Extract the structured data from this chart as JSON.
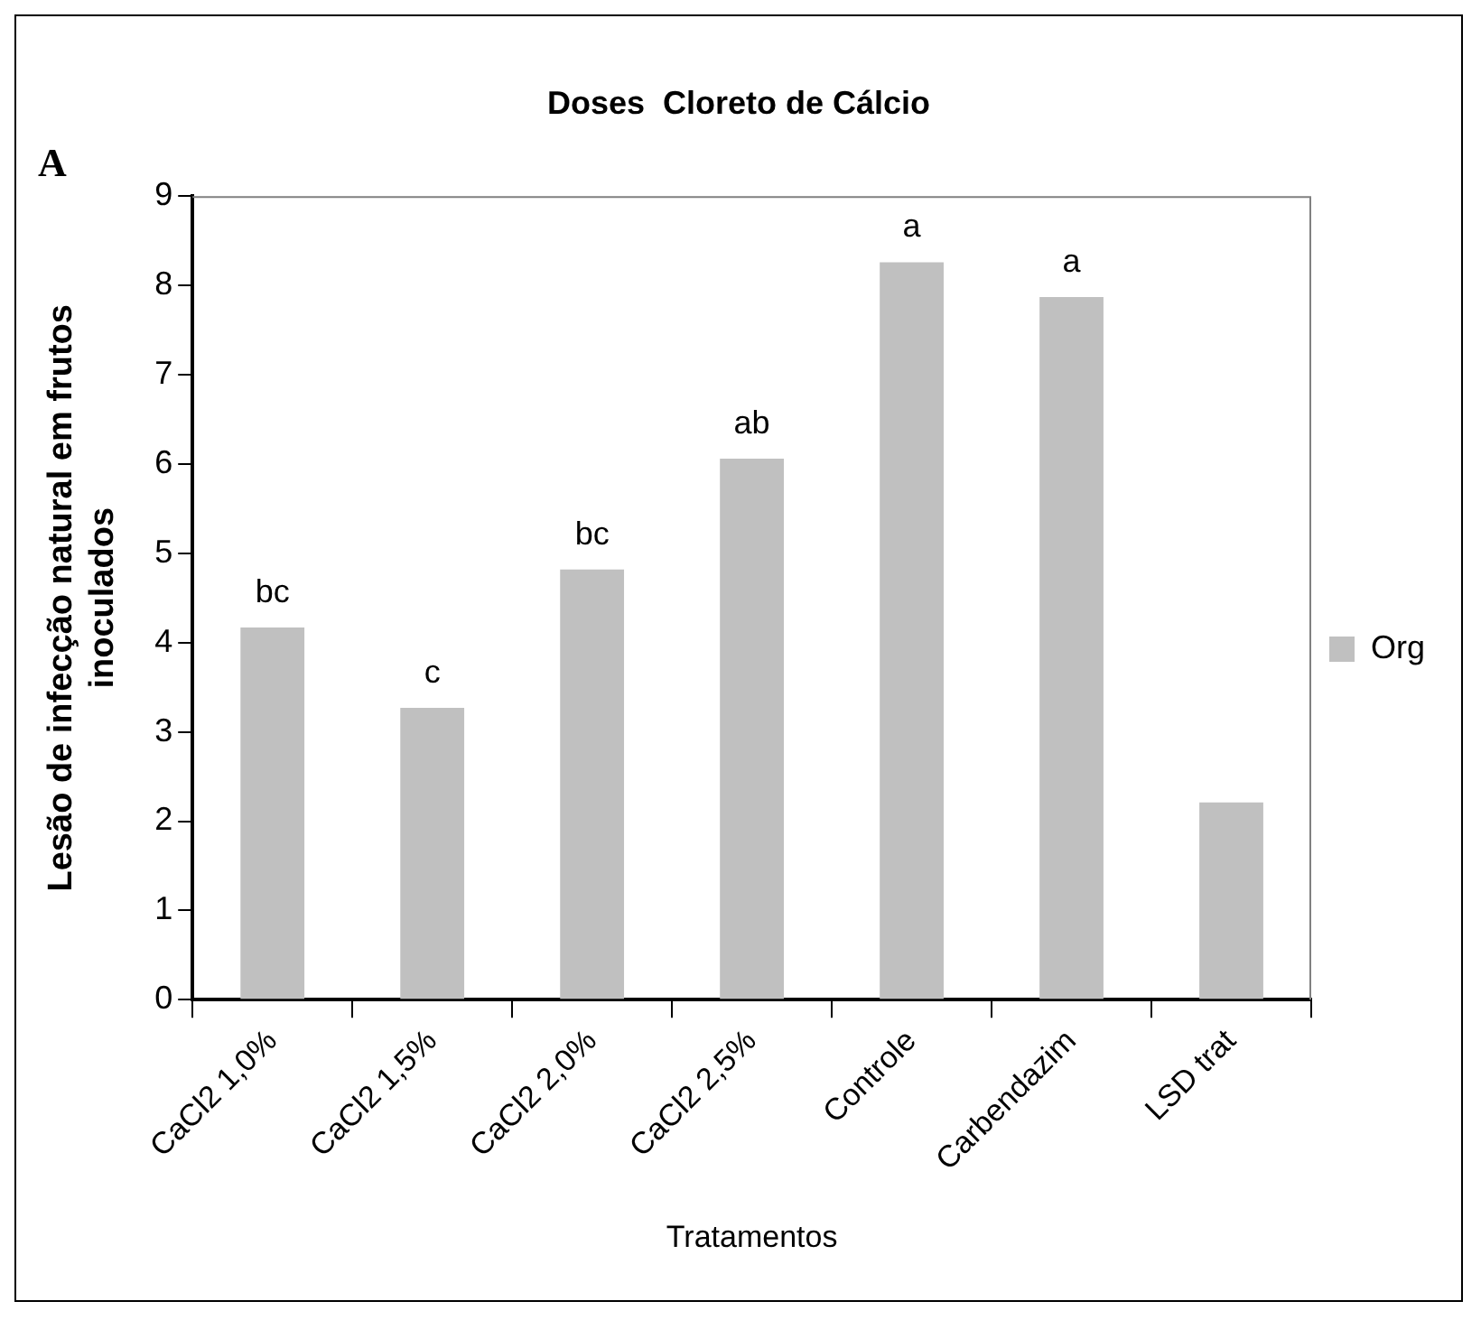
{
  "chart_data": {
    "type": "bar",
    "title": "Doses  Cloreto de Cálcio",
    "xlabel": "Tratamentos",
    "ylabel": "Lesão de infecção natural em frutos inoculados",
    "categories": [
      "CaCl2 1,0%",
      "CaCl2 1,5%",
      "CaCl2 2,0%",
      "CaCl2 2,5%",
      "Controle",
      "Carbendazim",
      "LSD trat"
    ],
    "series": [
      {
        "name": "Org",
        "color": "#c0c0c0",
        "values": [
          4.17,
          3.27,
          4.82,
          6.06,
          8.26,
          7.87,
          2.21
        ]
      }
    ],
    "ylim": [
      0,
      9
    ],
    "yticks": [
      0,
      1,
      2,
      3,
      4,
      5,
      6,
      7,
      8,
      9
    ],
    "grid": false,
    "legend": "right",
    "annotations": [
      "A",
      {
        "text": "bc",
        "x": "CaCl2 1,0%",
        "y": 4.17
      },
      {
        "text": "c",
        "x": "CaCl2 1,5%",
        "y": 3.27
      },
      {
        "text": "bc",
        "x": "CaCl2 2,0%",
        "y": 4.82
      },
      {
        "text": "ab",
        "x": "CaCl2 2,5%",
        "y": 6.06
      },
      {
        "text": "a",
        "x": "Controle",
        "y": 8.26
      },
      {
        "text": "a",
        "x": "Carbendazim",
        "y": 7.87
      }
    ]
  }
}
